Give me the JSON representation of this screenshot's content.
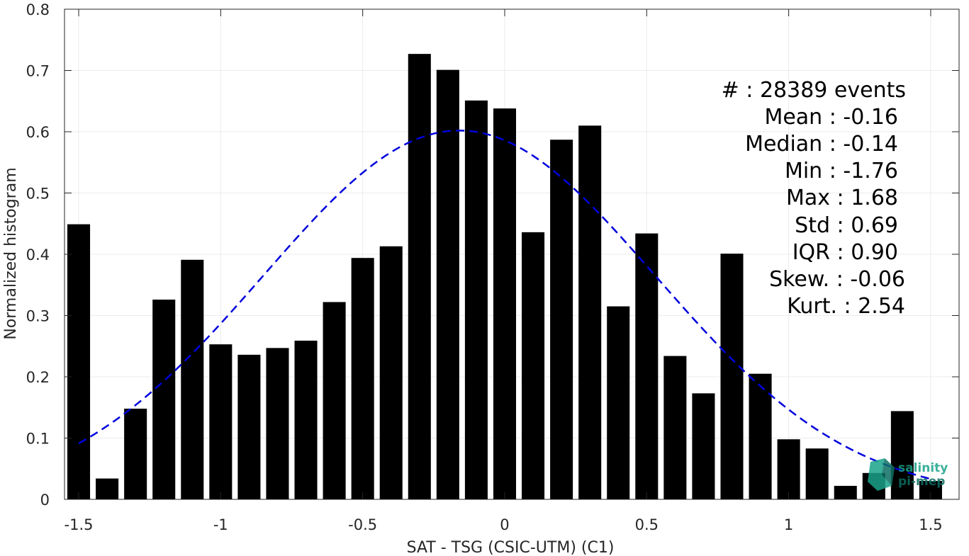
{
  "chart_data": {
    "type": "bar",
    "title": "",
    "xlabel": "SAT - TSG (CSIC-UTM) (C1)",
    "ylabel": "Normalized histogram",
    "xlim": [
      -1.55,
      1.6
    ],
    "ylim": [
      0,
      0.8
    ],
    "grid": true,
    "x_ticks": [
      -1.5,
      -1,
      -0.5,
      0,
      0.5,
      1,
      1.5
    ],
    "x_tick_labels": [
      "-1.5",
      "-1",
      "-0.5",
      "0",
      "0.5",
      "1",
      "1.5"
    ],
    "y_ticks": [
      0,
      0.1,
      0.2,
      0.3,
      0.4,
      0.5,
      0.6,
      0.7,
      0.8
    ],
    "y_tick_labels": [
      "0",
      "0.1",
      "0.2",
      "0.3",
      "0.4",
      "0.5",
      "0.6",
      "0.7",
      "0.8"
    ],
    "bar_color": "#000000",
    "bar_width": 0.08,
    "bins": [
      {
        "x": -1.5,
        "value": 0.449
      },
      {
        "x": -1.4,
        "value": 0.034
      },
      {
        "x": -1.3,
        "value": 0.148
      },
      {
        "x": -1.2,
        "value": 0.326
      },
      {
        "x": -1.1,
        "value": 0.391
      },
      {
        "x": -1.0,
        "value": 0.253
      },
      {
        "x": -0.9,
        "value": 0.236
      },
      {
        "x": -0.8,
        "value": 0.247
      },
      {
        "x": -0.7,
        "value": 0.259
      },
      {
        "x": -0.6,
        "value": 0.322
      },
      {
        "x": -0.5,
        "value": 0.394
      },
      {
        "x": -0.4,
        "value": 0.413
      },
      {
        "x": -0.3,
        "value": 0.727
      },
      {
        "x": -0.2,
        "value": 0.701
      },
      {
        "x": -0.1,
        "value": 0.651
      },
      {
        "x": 0.0,
        "value": 0.638
      },
      {
        "x": 0.1,
        "value": 0.436
      },
      {
        "x": 0.2,
        "value": 0.587
      },
      {
        "x": 0.3,
        "value": 0.61
      },
      {
        "x": 0.4,
        "value": 0.315
      },
      {
        "x": 0.5,
        "value": 0.434
      },
      {
        "x": 0.6,
        "value": 0.234
      },
      {
        "x": 0.7,
        "value": 0.173
      },
      {
        "x": 0.8,
        "value": 0.401
      },
      {
        "x": 0.9,
        "value": 0.205
      },
      {
        "x": 1.0,
        "value": 0.098
      },
      {
        "x": 1.1,
        "value": 0.083
      },
      {
        "x": 1.2,
        "value": 0.022
      },
      {
        "x": 1.3,
        "value": 0.043
      },
      {
        "x": 1.4,
        "value": 0.144
      },
      {
        "x": 1.5,
        "value": 0.03
      }
    ],
    "fit_curve": {
      "style": "dashed",
      "color": "#0000dd",
      "mean": -0.16,
      "std": 0.69,
      "peak": 0.602,
      "x_range": [
        -1.5,
        1.5
      ]
    },
    "stats": [
      {
        "key": "count",
        "text": "#  : 28389 events"
      },
      {
        "key": "mean",
        "text": "Mean : -0.16"
      },
      {
        "key": "median",
        "text": "Median : -0.14"
      },
      {
        "key": "min",
        "text": "Min : -1.76"
      },
      {
        "key": "max",
        "text": "Max : 1.68"
      },
      {
        "key": "std",
        "text": "Std : 0.69"
      },
      {
        "key": "iqr",
        "text": "IQR : 0.90"
      },
      {
        "key": "skew",
        "text": "Skew. : -0.06"
      },
      {
        "key": "kurt",
        "text": "Kurt. : 2.54"
      }
    ]
  },
  "logo": {
    "line1": "salinity",
    "line2": "pi-mep",
    "color": "#1aa38a"
  }
}
